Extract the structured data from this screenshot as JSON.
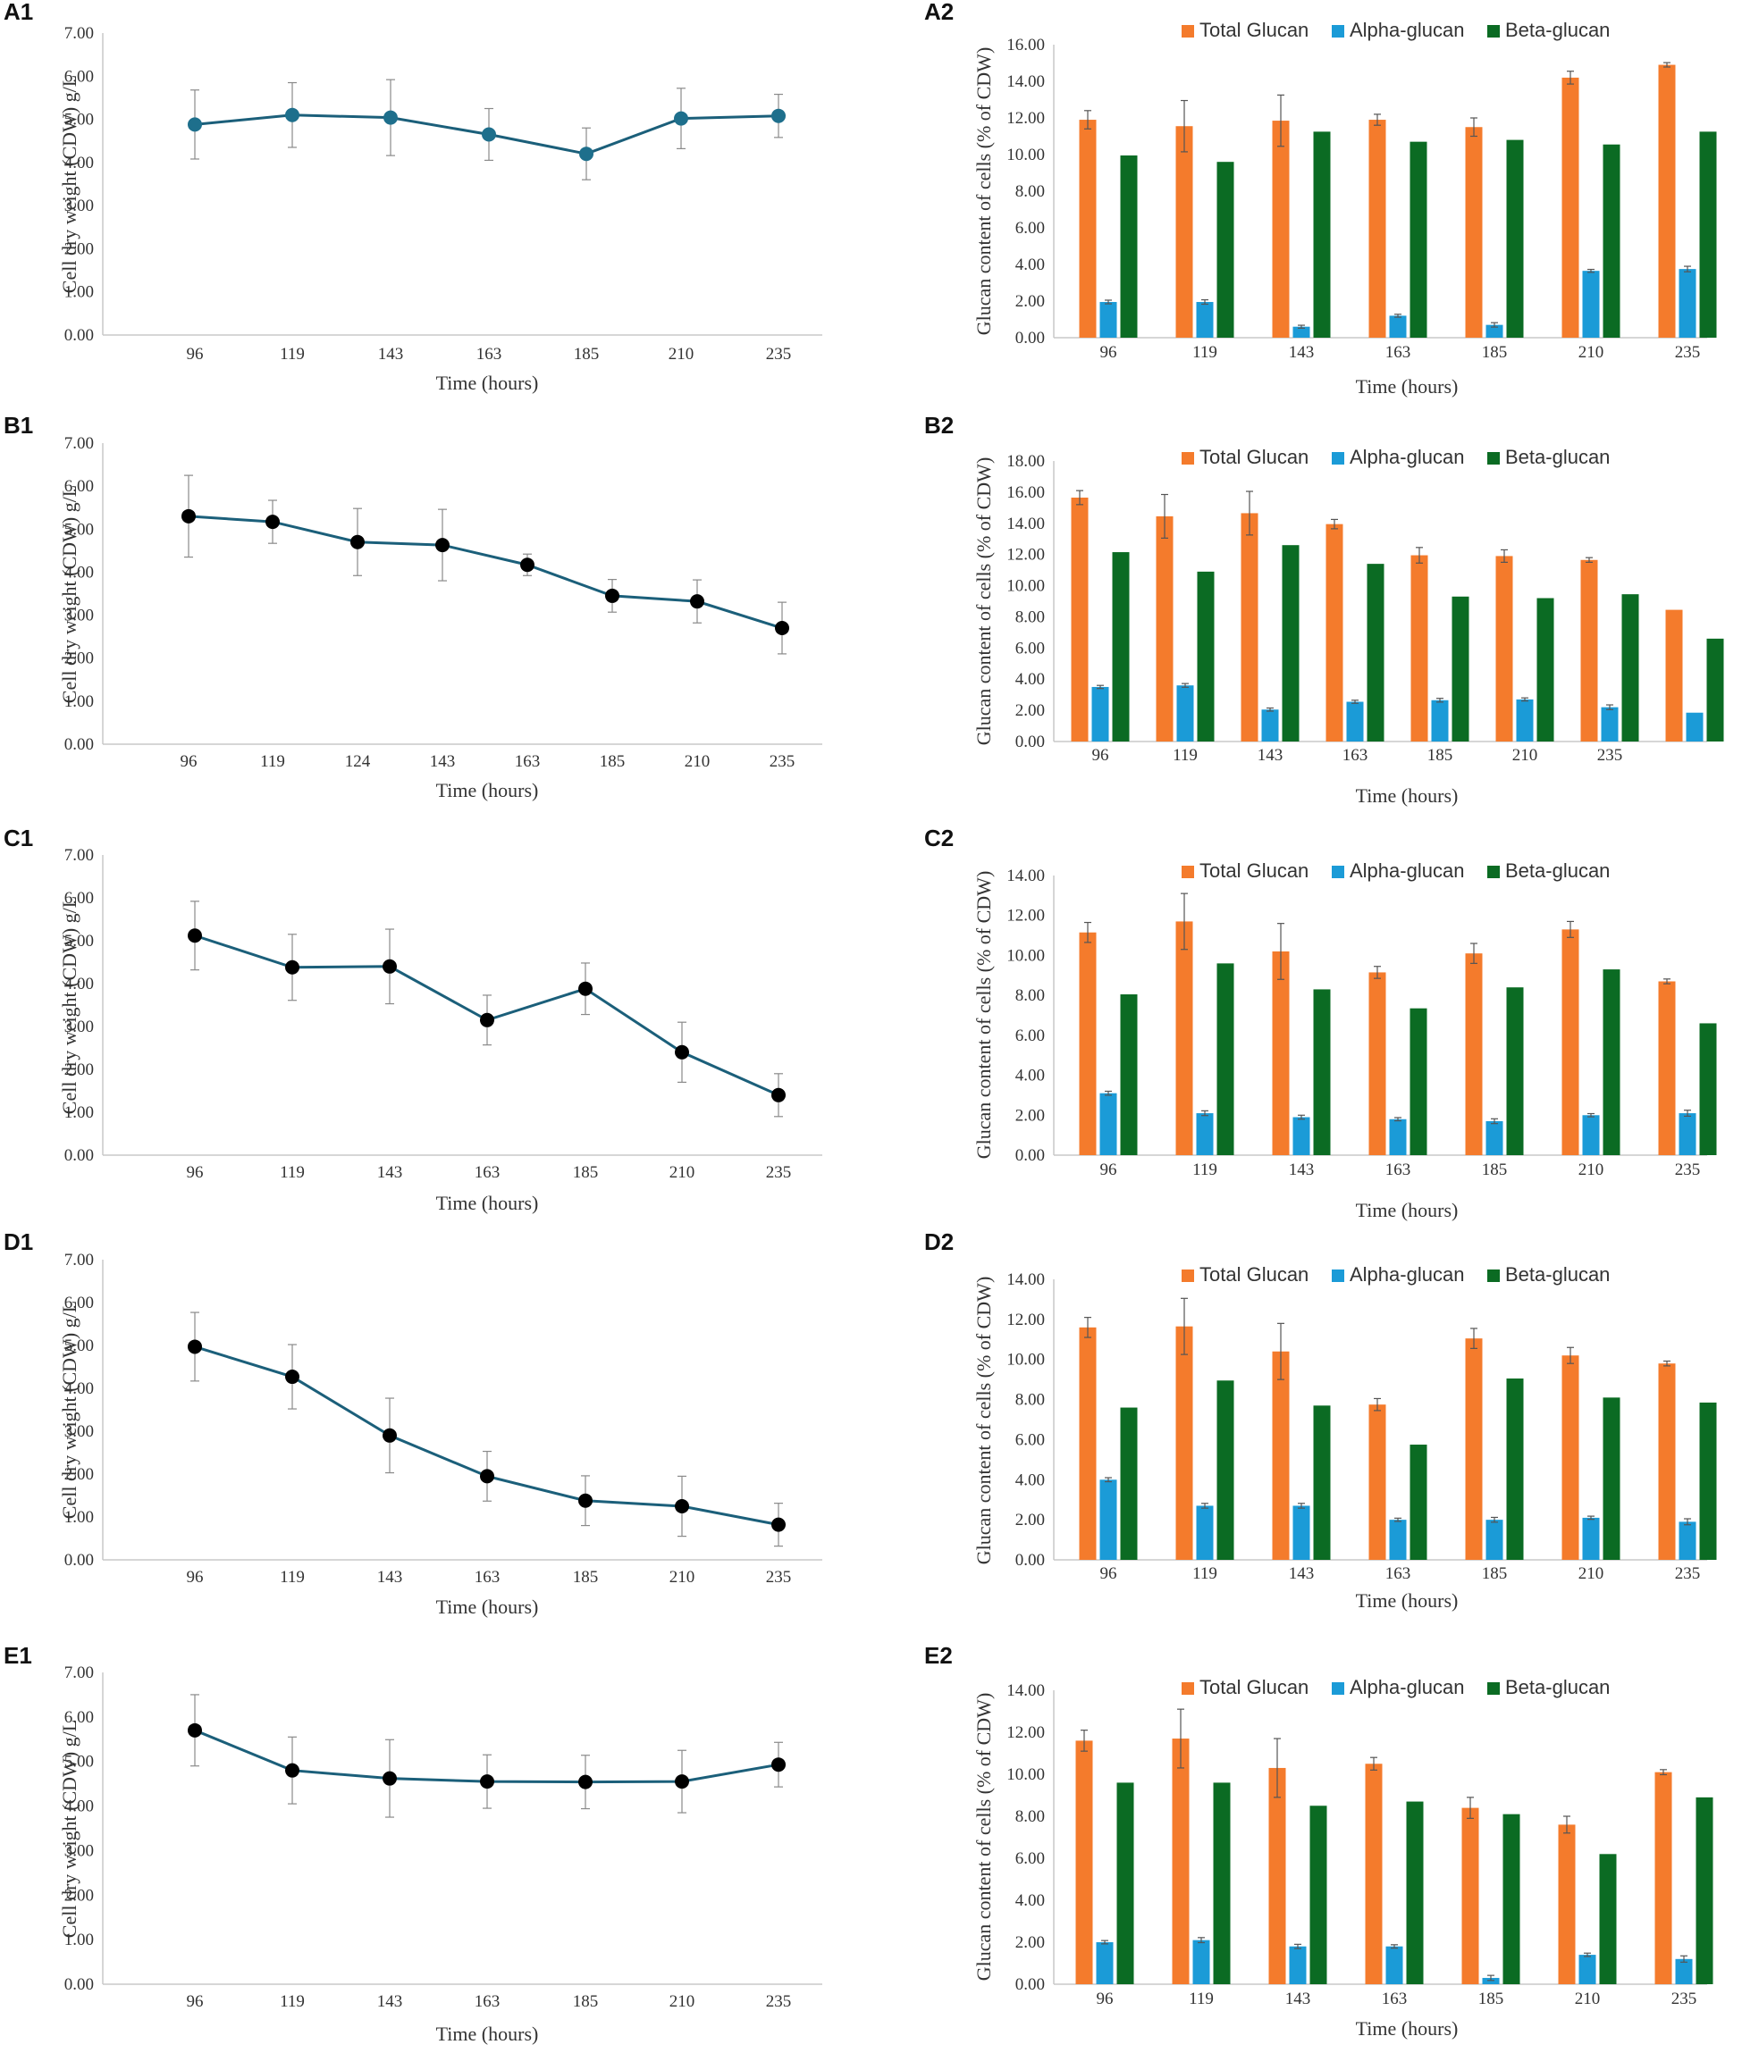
{
  "chart_data": [
    {
      "id": "A1",
      "panel_label": "A1",
      "type": "line",
      "x": [
        "96",
        "119",
        "143",
        "163",
        "185",
        "210",
        "235"
      ],
      "series": [
        {
          "values": [
            4.88,
            5.1,
            5.04,
            4.65,
            4.2,
            5.02,
            5.08
          ],
          "error": [
            0.8,
            0.75,
            0.88,
            0.6,
            0.6,
            0.7,
            0.5
          ],
          "color": "#1b5f7a",
          "marker_color": "#1e6f8c"
        }
      ],
      "xlabel": "Time (hours)",
      "ylabel": "Cell dry weight (CDW) g/L",
      "ylim": [
        0,
        7
      ],
      "yticks": [
        "0.00",
        "1.00",
        "2.00",
        "3.00",
        "4.00",
        "5.00",
        "6.00",
        "7.00"
      ],
      "grid": false
    },
    {
      "id": "A2",
      "panel_label": "A2",
      "type": "bar",
      "categories": [
        "96",
        "119",
        "143",
        "163",
        "185",
        "210",
        "235"
      ],
      "series": [
        {
          "name": "Total Glucan",
          "color": "#f47b2c",
          "values": [
            11.9,
            11.55,
            11.85,
            11.9,
            11.5,
            14.2,
            14.9
          ],
          "error": [
            0.5,
            1.4,
            1.4,
            0.3,
            0.5,
            0.35,
            0.12
          ]
        },
        {
          "name": "Alpha-glucan",
          "color": "#1b9bd7",
          "values": [
            1.95,
            1.95,
            0.6,
            1.2,
            0.7,
            3.65,
            3.75
          ],
          "error": [
            0.1,
            0.12,
            0.08,
            0.08,
            0.12,
            0.08,
            0.15
          ]
        },
        {
          "name": "Beta-glucan",
          "color": "#0b6b23",
          "values": [
            9.95,
            9.6,
            11.25,
            10.7,
            10.8,
            10.55,
            11.25
          ]
        }
      ],
      "xlabel": "Time (hours)",
      "ylabel": "Glucan content of cells (% of CDW)",
      "ylim": [
        0,
        16
      ],
      "yticks": [
        "0.00",
        "2.00",
        "4.00",
        "6.00",
        "8.00",
        "10.00",
        "12.00",
        "14.00",
        "16.00"
      ],
      "legend": "top"
    },
    {
      "id": "B1",
      "panel_label": "B1",
      "type": "line",
      "x": [
        "96",
        "119",
        "124",
        "143",
        "163",
        "185",
        "210",
        "235"
      ],
      "series": [
        {
          "values": [
            5.3,
            5.17,
            4.7,
            4.63,
            4.17,
            3.45,
            3.32,
            2.7
          ],
          "error": [
            0.95,
            0.5,
            0.78,
            0.83,
            0.25,
            0.38,
            0.5,
            0.6
          ],
          "color": "#1b5f7a",
          "marker_color": "#000000"
        }
      ],
      "xlabel": "Time (hours)",
      "ylabel": "Cell dry weight (CDW) g/L",
      "ylim": [
        0,
        7
      ],
      "yticks": [
        "0.00",
        "1.00",
        "2.00",
        "3.00",
        "4.00",
        "5.00",
        "6.00",
        "7.00"
      ],
      "grid": false
    },
    {
      "id": "B2",
      "panel_label": "B2",
      "type": "bar",
      "categories": [
        "96",
        "119",
        "143",
        "163",
        "185",
        "210",
        "235",
        ""
      ],
      "series": [
        {
          "name": "Total Glucan",
          "color": "#f47b2c",
          "values": [
            15.65,
            14.45,
            14.65,
            13.95,
            11.95,
            11.9,
            11.65,
            8.45
          ],
          "error": [
            0.45,
            1.4,
            1.4,
            0.3,
            0.5,
            0.4,
            0.15,
            0
          ]
        },
        {
          "name": "Alpha-glucan",
          "color": "#1b9bd7",
          "values": [
            3.5,
            3.6,
            2.05,
            2.55,
            2.65,
            2.7,
            2.2,
            1.85
          ],
          "error": [
            0.1,
            0.12,
            0.1,
            0.1,
            0.12,
            0.1,
            0.15,
            0
          ]
        },
        {
          "name": "Beta-glucan",
          "color": "#0b6b23",
          "values": [
            12.15,
            10.9,
            12.6,
            11.4,
            9.3,
            9.2,
            9.45,
            6.6
          ]
        }
      ],
      "xlabel": "Time (hours)",
      "ylabel": "Glucan content of cells (% of CDW)",
      "ylim": [
        0,
        18
      ],
      "yticks": [
        "0.00",
        "2.00",
        "4.00",
        "6.00",
        "8.00",
        "10.00",
        "12.00",
        "14.00",
        "16.00",
        "18.00"
      ],
      "legend": "top"
    },
    {
      "id": "C1",
      "panel_label": "C1",
      "type": "line",
      "x": [
        "96",
        "119",
        "143",
        "163",
        "185",
        "210",
        "235"
      ],
      "series": [
        {
          "values": [
            5.12,
            4.38,
            4.4,
            3.15,
            3.88,
            2.4,
            1.4
          ],
          "error": [
            0.8,
            0.77,
            0.87,
            0.58,
            0.6,
            0.7,
            0.5
          ],
          "color": "#1b5f7a",
          "marker_color": "#000000"
        }
      ],
      "xlabel": "Time (hours)",
      "ylabel": "Cell dry weight (CDW) g/L",
      "ylim": [
        0,
        7
      ],
      "yticks": [
        "0.00",
        "1.00",
        "2.00",
        "3.00",
        "4.00",
        "5.00",
        "6.00",
        "7.00"
      ],
      "grid": false
    },
    {
      "id": "C2",
      "panel_label": "C2",
      "type": "bar",
      "categories": [
        "96",
        "119",
        "143",
        "163",
        "185",
        "210",
        "235"
      ],
      "series": [
        {
          "name": "Total Glucan",
          "color": "#f47b2c",
          "values": [
            11.15,
            11.7,
            10.2,
            9.15,
            10.1,
            11.3,
            8.7
          ],
          "error": [
            0.5,
            1.4,
            1.4,
            0.3,
            0.5,
            0.4,
            0.12
          ]
        },
        {
          "name": "Alpha-glucan",
          "color": "#1b9bd7",
          "values": [
            3.1,
            2.1,
            1.9,
            1.8,
            1.7,
            2.0,
            2.1
          ],
          "error": [
            0.1,
            0.12,
            0.1,
            0.08,
            0.12,
            0.08,
            0.15
          ]
        },
        {
          "name": "Beta-glucan",
          "color": "#0b6b23",
          "values": [
            8.05,
            9.6,
            8.3,
            7.35,
            8.4,
            9.3,
            6.6
          ]
        }
      ],
      "xlabel": "Time (hours)",
      "ylabel": "Glucan content of cells (% of CDW)",
      "ylim": [
        0,
        14
      ],
      "yticks": [
        "0.00",
        "2.00",
        "4.00",
        "6.00",
        "8.00",
        "10.00",
        "12.00",
        "14.00"
      ],
      "legend": "top"
    },
    {
      "id": "D1",
      "panel_label": "D1",
      "type": "line",
      "x": [
        "96",
        "119",
        "143",
        "163",
        "185",
        "210",
        "235"
      ],
      "series": [
        {
          "values": [
            4.97,
            4.27,
            2.9,
            1.95,
            1.38,
            1.25,
            0.82
          ],
          "error": [
            0.8,
            0.75,
            0.87,
            0.58,
            0.58,
            0.7,
            0.5
          ],
          "color": "#1b5f7a",
          "marker_color": "#000000"
        }
      ],
      "xlabel": "Time (hours)",
      "ylabel": "Cell dry weight (CDW) g/L",
      "ylim": [
        0,
        7
      ],
      "yticks": [
        "0.00",
        "1.00",
        "2.00",
        "3.00",
        "4.00",
        "5.00",
        "6.00",
        "7.00"
      ],
      "grid": false
    },
    {
      "id": "D2",
      "panel_label": "D2",
      "type": "bar",
      "categories": [
        "96",
        "119",
        "143",
        "163",
        "185",
        "210",
        "235"
      ],
      "series": [
        {
          "name": "Total Glucan",
          "color": "#f47b2c",
          "values": [
            11.6,
            11.65,
            10.4,
            7.75,
            11.05,
            10.2,
            9.8
          ],
          "error": [
            0.5,
            1.4,
            1.4,
            0.3,
            0.5,
            0.4,
            0.12
          ]
        },
        {
          "name": "Alpha-glucan",
          "color": "#1b9bd7",
          "values": [
            4.0,
            2.7,
            2.7,
            2.0,
            2.0,
            2.1,
            1.9
          ],
          "error": [
            0.1,
            0.12,
            0.12,
            0.08,
            0.12,
            0.08,
            0.15
          ]
        },
        {
          "name": "Beta-glucan",
          "color": "#0b6b23",
          "values": [
            7.6,
            8.95,
            7.7,
            5.75,
            9.05,
            8.1,
            7.85
          ]
        }
      ],
      "xlabel": "Time (hours)",
      "ylabel": "Glucan content of cells (% of CDW)",
      "ylim": [
        0,
        14
      ],
      "yticks": [
        "0.00",
        "2.00",
        "4.00",
        "6.00",
        "8.00",
        "10.00",
        "12.00",
        "14.00"
      ],
      "legend": "top"
    },
    {
      "id": "E1",
      "panel_label": "E1",
      "type": "line",
      "x": [
        "96",
        "119",
        "143",
        "163",
        "185",
        "210",
        "235"
      ],
      "series": [
        {
          "values": [
            5.7,
            4.8,
            4.62,
            4.55,
            4.54,
            4.55,
            4.93
          ],
          "error": [
            0.8,
            0.75,
            0.87,
            0.6,
            0.6,
            0.7,
            0.5
          ],
          "color": "#1b5f7a",
          "marker_color": "#000000"
        }
      ],
      "xlabel": "Time (hours)",
      "ylabel": "Cell dry weight (CDW) g/L",
      "ylim": [
        0,
        7
      ],
      "yticks": [
        "0.00",
        "1.00",
        "2.00",
        "3.00",
        "4.00",
        "5.00",
        "6.00",
        "7.00"
      ],
      "grid": false
    },
    {
      "id": "E2",
      "panel_label": "E2",
      "type": "bar",
      "categories": [
        "96",
        "119",
        "143",
        "163",
        "185",
        "210",
        "235"
      ],
      "series": [
        {
          "name": "Total Glucan",
          "color": "#f47b2c",
          "values": [
            11.6,
            11.7,
            10.3,
            10.5,
            8.4,
            7.6,
            10.1
          ],
          "error": [
            0.5,
            1.4,
            1.4,
            0.3,
            0.5,
            0.4,
            0.12
          ]
        },
        {
          "name": "Alpha-glucan",
          "color": "#1b9bd7",
          "values": [
            2.0,
            2.1,
            1.8,
            1.8,
            0.3,
            1.4,
            1.2
          ],
          "error": [
            0.08,
            0.12,
            0.1,
            0.08,
            0.12,
            0.08,
            0.15
          ]
        },
        {
          "name": "Beta-glucan",
          "color": "#0b6b23",
          "values": [
            9.6,
            9.6,
            8.5,
            8.7,
            8.1,
            6.2,
            8.9
          ]
        }
      ],
      "xlabel": "Time (hours)",
      "ylabel": "Glucan content of cells (% of CDW)",
      "ylim": [
        0,
        14
      ],
      "yticks": [
        "0.00",
        "2.00",
        "4.00",
        "6.00",
        "8.00",
        "10.00",
        "12.00",
        "14.00"
      ],
      "legend": "top"
    }
  ]
}
